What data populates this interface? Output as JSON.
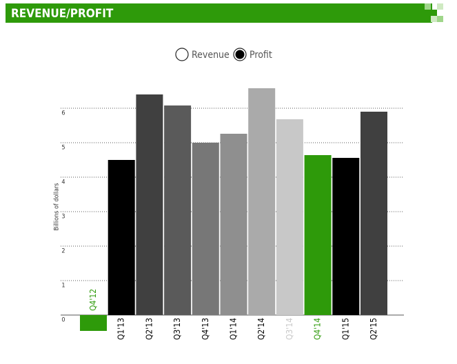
{
  "header": {
    "title": "REVENUE/PROFIT"
  },
  "legend": {
    "options": [
      "Revenue",
      "Profit"
    ],
    "selected": 1
  },
  "chart_data": {
    "type": "bar",
    "y_label": "Billions of dollars",
    "categories": [
      "Q4'12",
      "Q1'13",
      "Q2'13",
      "Q3'13",
      "Q4'13",
      "Q1'14",
      "Q2'14",
      "Q3'14",
      "Q4'14",
      "Q1'15",
      "Q2'15"
    ],
    "values": [
      -0.46,
      4.5,
      6.4,
      6.08,
      5.0,
      5.26,
      6.58,
      5.68,
      4.64,
      4.56,
      5.9
    ],
    "colors": [
      "#2e9a0a",
      "#000000",
      "#404040",
      "#5a5a5a",
      "#777777",
      "#8f8f8f",
      "#aaaaaa",
      "#c8c8c8",
      "#2e9a0a",
      "#000000",
      "#404040"
    ],
    "label_colors": [
      "#2e9a0a",
      "#000000",
      "#000000",
      "#000000",
      "#000000",
      "#000000",
      "#000000",
      "#c8c8c8",
      "#2e9a0a",
      "#000000",
      "#000000"
    ],
    "ylim": [
      -0.5,
      7
    ],
    "yticks": [
      0,
      1,
      2,
      3,
      4,
      5,
      6
    ],
    "grid": true
  }
}
